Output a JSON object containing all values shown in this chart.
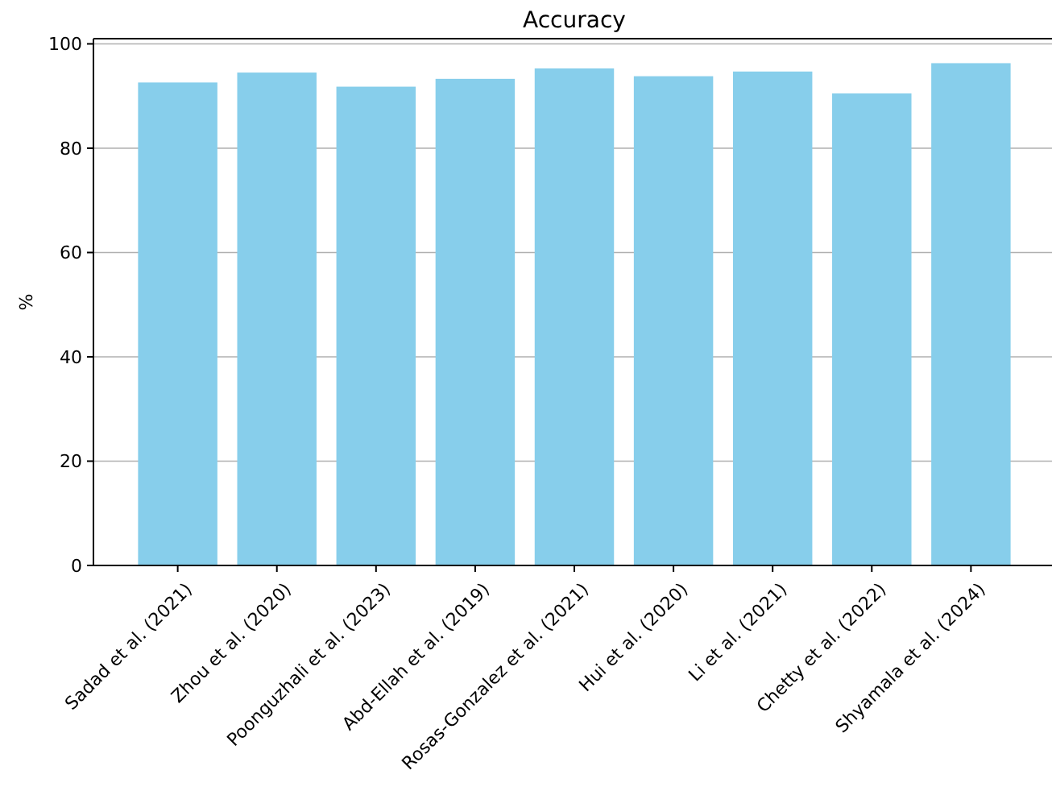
{
  "chart_data": {
    "type": "bar",
    "title": "Accuracy",
    "ylabel": "%",
    "categories": [
      "Sadad et al. (2021)",
      "Zhou et al. (2020)",
      "Poonguzhali et al. (2023)",
      "Abd-Ellah et al. (2019)",
      "Rosas-Gonzalez et al. (2021)",
      "Hui et al. (2020)",
      "Li et al. (2021)",
      "Chetty et al. (2022)",
      "Shyamala et al. (2024)"
    ],
    "values": [
      92.6,
      94.5,
      91.8,
      93.3,
      95.3,
      93.8,
      94.7,
      90.5,
      96.3
    ],
    "color": "#87ceeb",
    "ylim": [
      0,
      101
    ],
    "yticks": [
      0,
      20,
      40,
      60,
      80,
      100
    ],
    "grid": "y"
  }
}
